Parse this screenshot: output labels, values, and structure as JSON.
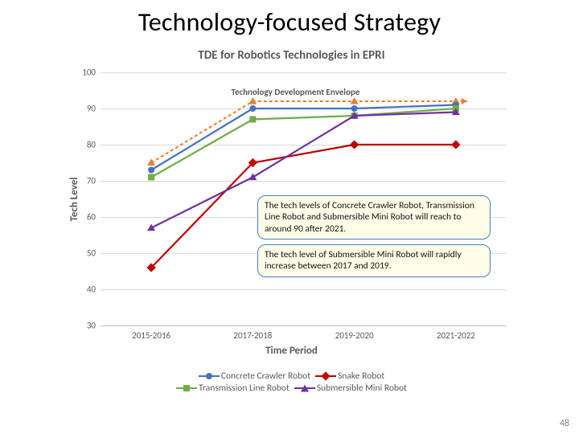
{
  "slide": {
    "title": "Technology-focused Strategy",
    "page_number": "48"
  },
  "chart": {
    "type": "line",
    "title": "TDE for Robotics Technologies in EPRI",
    "envelope_label": "Technology Development Envelope",
    "x_axis": {
      "label": "Time Period",
      "categories": [
        "2015-2016",
        "2017-2018",
        "2019-2020",
        "2021-2022"
      ]
    },
    "y_axis": {
      "label": "Tech Level",
      "min": 30,
      "max": 100,
      "step": 10
    },
    "grid_color": "#d9d9d9",
    "axis_line_color": "#bfbfbf",
    "tick_color": "#595959",
    "background_color": "#ffffff",
    "envelope": {
      "color": "#ed7d31",
      "dash": "4 3",
      "marker": "triangle",
      "width": 2,
      "values": [
        75,
        92,
        92,
        92
      ]
    },
    "series": [
      {
        "name": "Concrete Crawler Robot",
        "color": "#4472c4",
        "marker": "circle",
        "width": 2.2,
        "values": [
          73,
          90,
          90,
          91
        ]
      },
      {
        "name": "Snake Robot",
        "color": "#c00000",
        "marker": "diamond",
        "width": 2.2,
        "values": [
          46,
          75,
          80,
          80
        ]
      },
      {
        "name": "Transmission Line Robot",
        "color": "#70ad47",
        "marker": "square",
        "width": 2.2,
        "values": [
          71,
          87,
          88,
          90
        ]
      },
      {
        "name": "Submersible Mini Robot",
        "color": "#7030a0",
        "marker": "triangle",
        "width": 2.2,
        "values": [
          57,
          71,
          88,
          89
        ]
      }
    ],
    "legend_layout": [
      [
        0,
        1
      ],
      [
        2,
        3
      ]
    ]
  },
  "callouts": [
    {
      "text": "The tech levels of Concrete Crawler Robot, Transmission Line Robot and Submersible Mini Robot will reach to around 90 after 2021."
    },
    {
      "text": "The tech level of Submersible Mini Robot will rapidly increase between 2017 and 2019."
    }
  ]
}
